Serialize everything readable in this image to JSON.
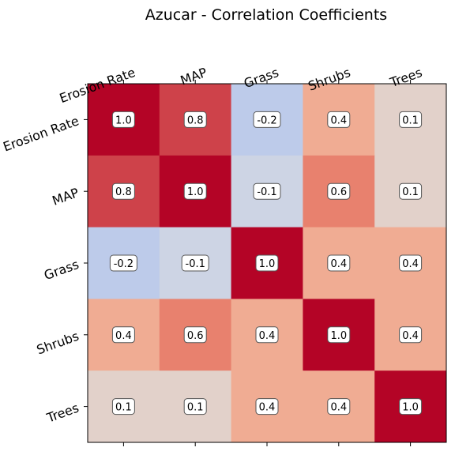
{
  "chart_data": {
    "type": "heatmap",
    "title": "Azucar - Correlation Coefficients",
    "x_categories": [
      "Erosion Rate",
      "MAP",
      "Grass",
      "Shrubs",
      "Trees"
    ],
    "y_categories": [
      "Erosion Rate",
      "MAP",
      "Grass",
      "Shrubs",
      "Trees"
    ],
    "values": [
      [
        1.0,
        0.8,
        -0.2,
        0.4,
        0.1
      ],
      [
        0.8,
        1.0,
        -0.1,
        0.6,
        0.1
      ],
      [
        -0.2,
        -0.1,
        1.0,
        0.4,
        0.4
      ],
      [
        0.4,
        0.6,
        0.4,
        1.0,
        0.4
      ],
      [
        0.1,
        0.1,
        0.4,
        0.4,
        1.0
      ]
    ],
    "cell_labels": [
      [
        "1.0",
        "0.8",
        "-0.2",
        "0.4",
        "0.1"
      ],
      [
        "0.8",
        "1.0",
        "-0.1",
        "0.6",
        "0.1"
      ],
      [
        "-0.2",
        "-0.1",
        "1.0",
        "0.4",
        "0.4"
      ],
      [
        "0.4",
        "0.6",
        "0.4",
        "1.0",
        "0.4"
      ],
      [
        "0.1",
        "0.1",
        "0.4",
        "0.4",
        "1.0"
      ]
    ],
    "x_axis_position": "top",
    "colormap": "coolwarm",
    "vmin": -1.0,
    "vmax": 1.0,
    "grid": false,
    "colors": {
      "1.0": "#b40426",
      "0.8": "#d75445",
      "0.6": "#ed8366",
      "0.4": "#f6a98a",
      "0.4_alt": "#f4a486",
      "0.1": "#e6d8cd",
      "-0.1": "#d5dbe5",
      "-0.2": "#c0d4f5"
    }
  }
}
